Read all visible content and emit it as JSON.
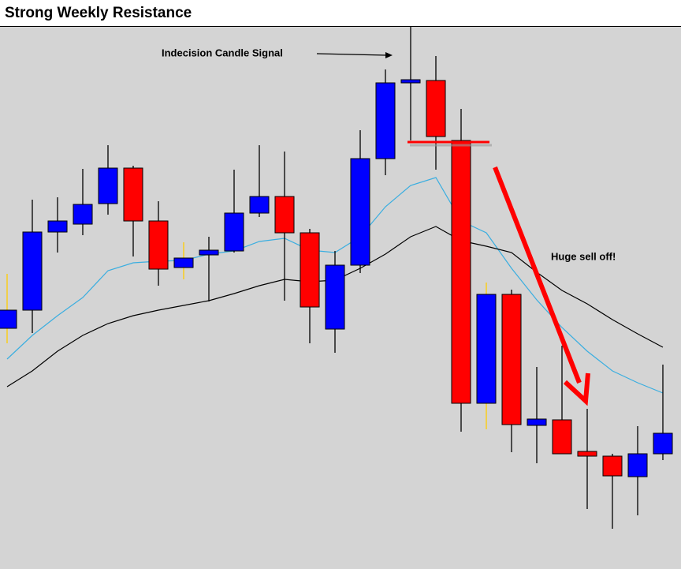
{
  "chart_data": {
    "type": "candlestick",
    "title": "Strong Weekly Resistance",
    "annotations": [
      "Indecision Candle Signal",
      "Huge sell off!"
    ],
    "ylim": [
      0,
      687
    ],
    "up_color": "#0000ff",
    "down_color": "#ff0000",
    "candles": [
      {
        "open": 305,
        "high": 374,
        "low": 286,
        "close": 328,
        "wick": "#ffcc00"
      },
      {
        "open": 328,
        "high": 468,
        "low": 299,
        "close": 427
      },
      {
        "open": 427,
        "high": 471,
        "low": 401,
        "close": 441
      },
      {
        "open": 437,
        "high": 507,
        "low": 423,
        "close": 462
      },
      {
        "open": 463,
        "high": 537,
        "low": 449,
        "close": 508
      },
      {
        "open": 508,
        "high": 511,
        "low": 396,
        "close": 441
      },
      {
        "open": 441,
        "high": 466,
        "low": 359,
        "close": 380
      },
      {
        "open": 382,
        "high": 414,
        "low": 367,
        "close": 394,
        "wick": "#ffcc00"
      },
      {
        "open": 398,
        "high": 421,
        "low": 339,
        "close": 404
      },
      {
        "open": 403,
        "high": 506,
        "low": 401,
        "close": 451
      },
      {
        "open": 451,
        "high": 537,
        "low": 446,
        "close": 472
      },
      {
        "open": 472,
        "high": 529,
        "low": 340,
        "close": 426
      },
      {
        "open": 426,
        "high": 431,
        "low": 286,
        "close": 332
      },
      {
        "open": 304,
        "high": 403,
        "low": 274,
        "close": 385
      },
      {
        "open": 385,
        "high": 556,
        "low": 375,
        "close": 520
      },
      {
        "open": 520,
        "high": 633,
        "low": 499,
        "close": 616
      },
      {
        "open": 616,
        "high": 687,
        "low": 543,
        "close": 620
      },
      {
        "open": 619,
        "high": 650,
        "low": 506,
        "close": 548
      },
      {
        "open": 543,
        "high": 583,
        "low": 174,
        "close": 210
      },
      {
        "open": 210,
        "high": 363,
        "low": 177,
        "close": 348,
        "wick": "#ffcc00"
      },
      {
        "open": 348,
        "high": 354,
        "low": 148,
        "close": 183
      },
      {
        "open": 182,
        "high": 256,
        "low": 134,
        "close": 190
      },
      {
        "open": 189,
        "high": 283,
        "low": 146,
        "close": 146
      },
      {
        "open": 149,
        "high": 203,
        "low": 76,
        "close": 143
      },
      {
        "open": 143,
        "high": 146,
        "low": 51,
        "close": 118
      },
      {
        "open": 117,
        "high": 181,
        "low": 68,
        "close": 146
      },
      {
        "open": 146,
        "high": 259,
        "low": 138,
        "close": 172
      }
    ],
    "lines": [
      {
        "color": "#3aaee0",
        "values": [
          266,
          296,
          321,
          344,
          378,
          388,
          390,
          391,
          399,
          403,
          415,
          419,
          404,
          401,
          421,
          459,
          486,
          496,
          441,
          426,
          381,
          341,
          306,
          276,
          251,
          236,
          223
        ]
      },
      {
        "color": "#000000",
        "values": [
          231,
          251,
          276,
          296,
          311,
          321,
          328,
          334,
          340,
          349,
          359,
          367,
          364,
          366,
          381,
          399,
          421,
          434,
          416,
          409,
          401,
          376,
          353,
          336,
          316,
          298,
          281
        ]
      }
    ]
  }
}
